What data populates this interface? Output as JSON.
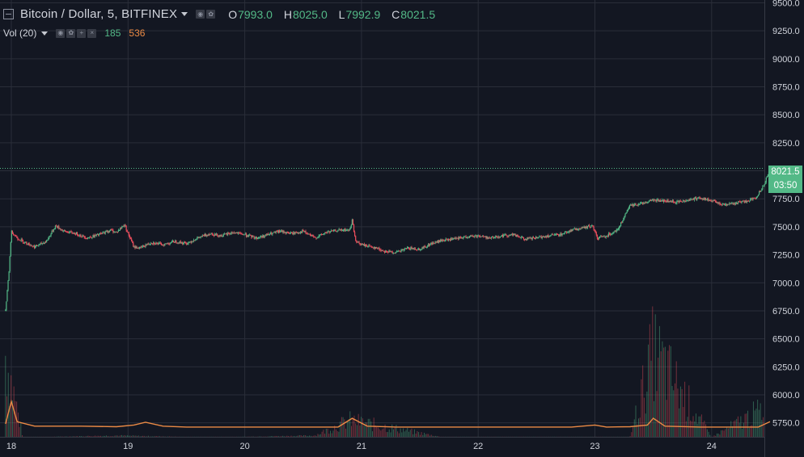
{
  "header": {
    "symbol_title": "Bitcoin / Dollar, 5, BITFINEX",
    "ohlc": [
      {
        "key": "O",
        "value": "7993.0"
      },
      {
        "key": "H",
        "value": "8025.0"
      },
      {
        "key": "L",
        "value": "7992.9"
      },
      {
        "key": "C",
        "value": "8021.5"
      }
    ],
    "volume_label": "Vol (20)",
    "volume_value": "185",
    "volume_ma_value": "536"
  },
  "last_price": {
    "value": "8021.5",
    "countdown": "03:50"
  },
  "colors": {
    "background": "#131722",
    "grid": "#2a2e39",
    "up": "#53b987",
    "down": "#eb4d5c",
    "volume_ma": "#eb8a45",
    "axis_text": "#d1d4dc"
  },
  "chart_data": {
    "type": "candlestick",
    "x_axis": {
      "tick_labels": [
        "18",
        "19",
        "20",
        "21",
        "22",
        "23",
        "24"
      ]
    },
    "y_axis": {
      "range": [
        5625,
        9525
      ],
      "tick_labels": [
        "9500.0",
        "9250.0",
        "9000.0",
        "8750.0",
        "8500.0",
        "8250.0",
        "8000.0",
        "7750.0",
        "7500.0",
        "7250.0",
        "7000.0",
        "6750.0",
        "6500.0",
        "6250.0",
        "6000.0",
        "5750.0"
      ],
      "tick_values": [
        9500,
        9250,
        9000,
        8750,
        8500,
        8250,
        8000,
        7750,
        7500,
        7250,
        7000,
        6750,
        6500,
        6250,
        6000,
        5750
      ]
    },
    "grid": true,
    "price_series": {
      "name": "BTC/USD 5m",
      "points": [
        [
          17.95,
          6750
        ],
        [
          17.98,
          7100
        ],
        [
          18.0,
          7460
        ],
        [
          18.05,
          7400
        ],
        [
          18.1,
          7370
        ],
        [
          18.2,
          7320
        ],
        [
          18.3,
          7370
        ],
        [
          18.38,
          7510
        ],
        [
          18.45,
          7460
        ],
        [
          18.55,
          7440
        ],
        [
          18.65,
          7400
        ],
        [
          18.75,
          7430
        ],
        [
          18.85,
          7470
        ],
        [
          18.9,
          7450
        ],
        [
          18.97,
          7520
        ],
        [
          19.0,
          7440
        ],
        [
          19.05,
          7320
        ],
        [
          19.1,
          7310
        ],
        [
          19.2,
          7360
        ],
        [
          19.3,
          7340
        ],
        [
          19.4,
          7370
        ],
        [
          19.5,
          7350
        ],
        [
          19.6,
          7400
        ],
        [
          19.7,
          7440
        ],
        [
          19.8,
          7420
        ],
        [
          19.9,
          7450
        ],
        [
          20.0,
          7430
        ],
        [
          20.1,
          7400
        ],
        [
          20.2,
          7430
        ],
        [
          20.3,
          7460
        ],
        [
          20.4,
          7440
        ],
        [
          20.5,
          7460
        ],
        [
          20.6,
          7400
        ],
        [
          20.7,
          7450
        ],
        [
          20.8,
          7470
        ],
        [
          20.9,
          7470
        ],
        [
          20.92,
          7560
        ],
        [
          20.95,
          7370
        ],
        [
          21.0,
          7340
        ],
        [
          21.1,
          7320
        ],
        [
          21.2,
          7280
        ],
        [
          21.3,
          7270
        ],
        [
          21.4,
          7310
        ],
        [
          21.5,
          7300
        ],
        [
          21.6,
          7350
        ],
        [
          21.7,
          7380
        ],
        [
          21.8,
          7390
        ],
        [
          21.9,
          7410
        ],
        [
          22.0,
          7420
        ],
        [
          22.1,
          7400
        ],
        [
          22.2,
          7420
        ],
        [
          22.3,
          7430
        ],
        [
          22.4,
          7390
        ],
        [
          22.5,
          7400
        ],
        [
          22.6,
          7420
        ],
        [
          22.7,
          7430
        ],
        [
          22.8,
          7470
        ],
        [
          22.9,
          7490
        ],
        [
          22.98,
          7510
        ],
        [
          23.02,
          7400
        ],
        [
          23.1,
          7420
        ],
        [
          23.2,
          7480
        ],
        [
          23.3,
          7690
        ],
        [
          23.4,
          7710
        ],
        [
          23.5,
          7740
        ],
        [
          23.6,
          7730
        ],
        [
          23.7,
          7720
        ],
        [
          23.8,
          7740
        ],
        [
          23.9,
          7760
        ],
        [
          24.0,
          7730
        ],
        [
          24.1,
          7700
        ],
        [
          24.2,
          7710
        ],
        [
          24.3,
          7730
        ],
        [
          24.38,
          7760
        ],
        [
          24.45,
          7880
        ],
        [
          24.5,
          8021.5
        ]
      ]
    },
    "volume_series": {
      "name": "Vol (20)",
      "points": [
        [
          17.95,
          6600
        ],
        [
          18.1,
          5620
        ],
        [
          18.9,
          5640
        ],
        [
          19.7,
          5620
        ],
        [
          20.6,
          5640
        ],
        [
          20.9,
          5820
        ],
        [
          21.7,
          5620
        ],
        [
          22.7,
          5620
        ],
        [
          23.3,
          5620
        ],
        [
          23.5,
          6640
        ],
        [
          24.0,
          5620
        ],
        [
          24.45,
          5960
        ]
      ]
    },
    "volume_ma_series": {
      "name": "Vol MA",
      "points": [
        [
          17.95,
          5740
        ],
        [
          18.0,
          5940
        ],
        [
          18.05,
          5760
        ],
        [
          18.2,
          5720
        ],
        [
          18.35,
          5720
        ],
        [
          18.6,
          5720
        ],
        [
          18.9,
          5715
        ],
        [
          19.05,
          5730
        ],
        [
          19.15,
          5755
        ],
        [
          19.3,
          5720
        ],
        [
          19.5,
          5712
        ],
        [
          19.9,
          5712
        ],
        [
          20.3,
          5712
        ],
        [
          20.6,
          5712
        ],
        [
          20.8,
          5712
        ],
        [
          20.92,
          5790
        ],
        [
          21.05,
          5720
        ],
        [
          21.3,
          5712
        ],
        [
          21.6,
          5712
        ],
        [
          22.0,
          5712
        ],
        [
          22.4,
          5712
        ],
        [
          22.8,
          5712
        ],
        [
          23.0,
          5730
        ],
        [
          23.1,
          5712
        ],
        [
          23.3,
          5715
        ],
        [
          23.45,
          5730
        ],
        [
          23.5,
          5790
        ],
        [
          23.6,
          5720
        ],
        [
          23.9,
          5712
        ],
        [
          24.2,
          5712
        ],
        [
          24.4,
          5712
        ],
        [
          24.5,
          5760
        ]
      ]
    }
  }
}
